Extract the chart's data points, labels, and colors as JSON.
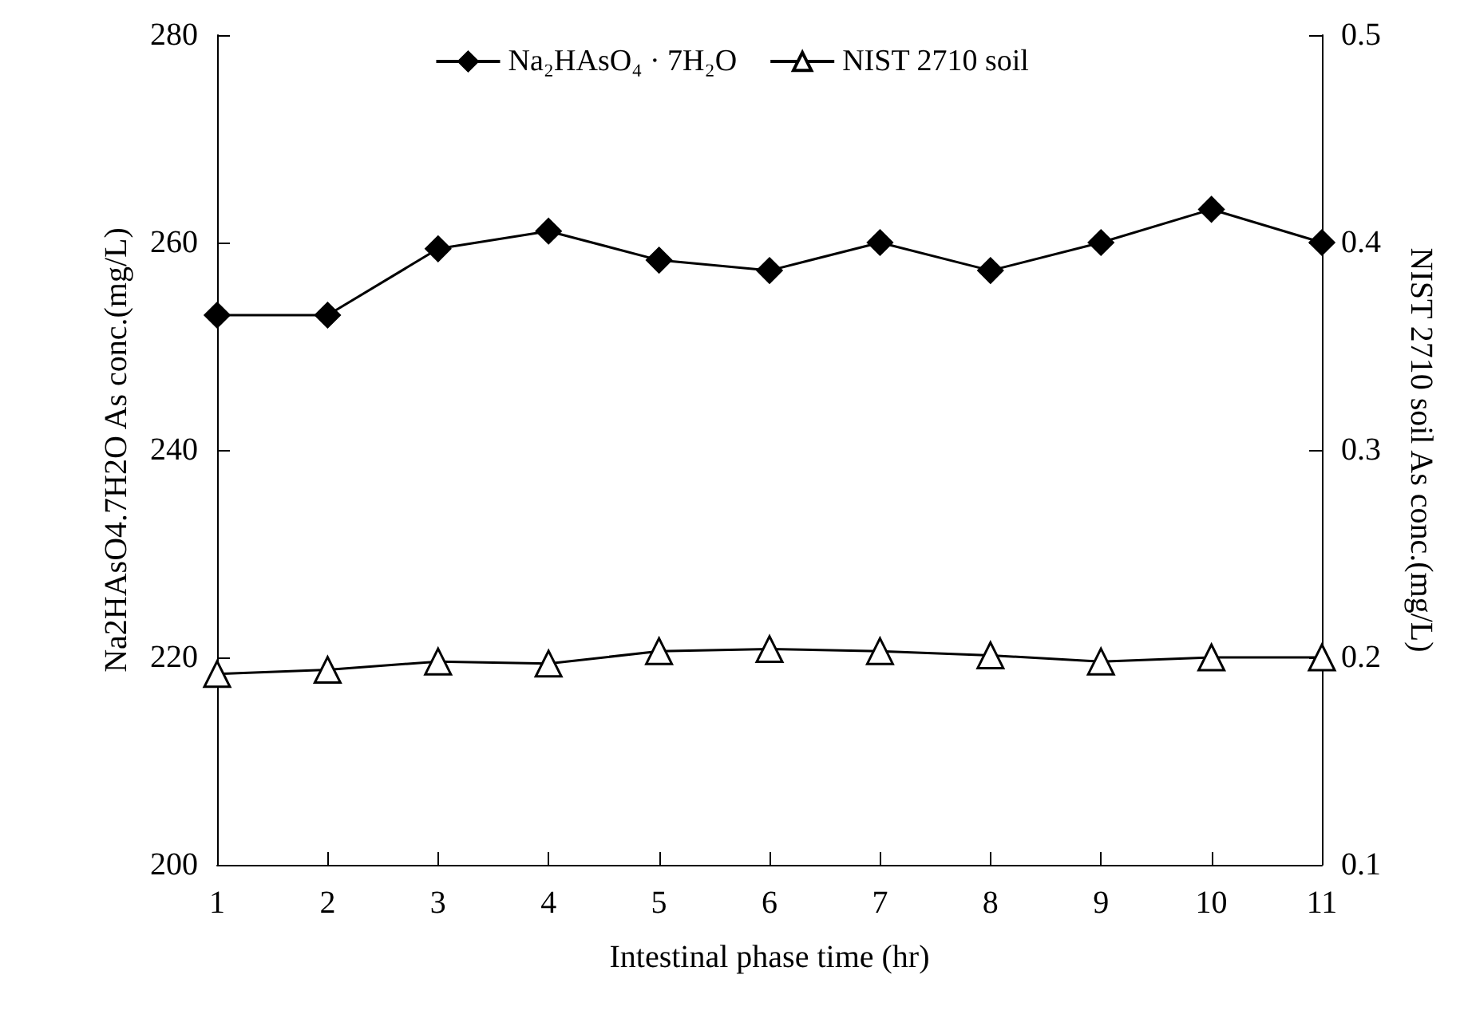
{
  "chart_data": {
    "type": "line",
    "xlabel": "Intestinal phase time (hr)",
    "ylabel": "Na2HAsO4.7H2O As conc.(mg/L)",
    "y2label": "NIST 2710 soil As conc.(mg/L)",
    "categories": [
      "1",
      "2",
      "3",
      "4",
      "5",
      "6",
      "7",
      "8",
      "9",
      "10",
      "11"
    ],
    "series": [
      {
        "name": "Na₂HAsO₄ · 7H₂O",
        "color": "#000000",
        "marker": "diamond",
        "values": [
          253,
          253,
          259.4,
          261.1,
          258.3,
          257.3,
          260,
          257.3,
          260,
          263.2,
          260
        ]
      },
      {
        "name": "NIST 2710 soil",
        "color": "#000000",
        "marker": "triangle",
        "axis": "y2",
        "values": [
          0.192,
          0.194,
          0.198,
          0.197,
          0.203,
          0.204,
          0.203,
          0.201,
          0.198,
          0.2,
          0.2
        ]
      }
    ],
    "ylim": [
      200,
      280
    ],
    "yticks": [
      200,
      220,
      240,
      260,
      280
    ],
    "y2lim": [
      0.1,
      0.5
    ],
    "y2ticks": [
      0.1,
      0.2,
      0.3,
      0.4,
      0.5
    ],
    "grid": false,
    "legend": "top",
    "line_style": "solid"
  }
}
